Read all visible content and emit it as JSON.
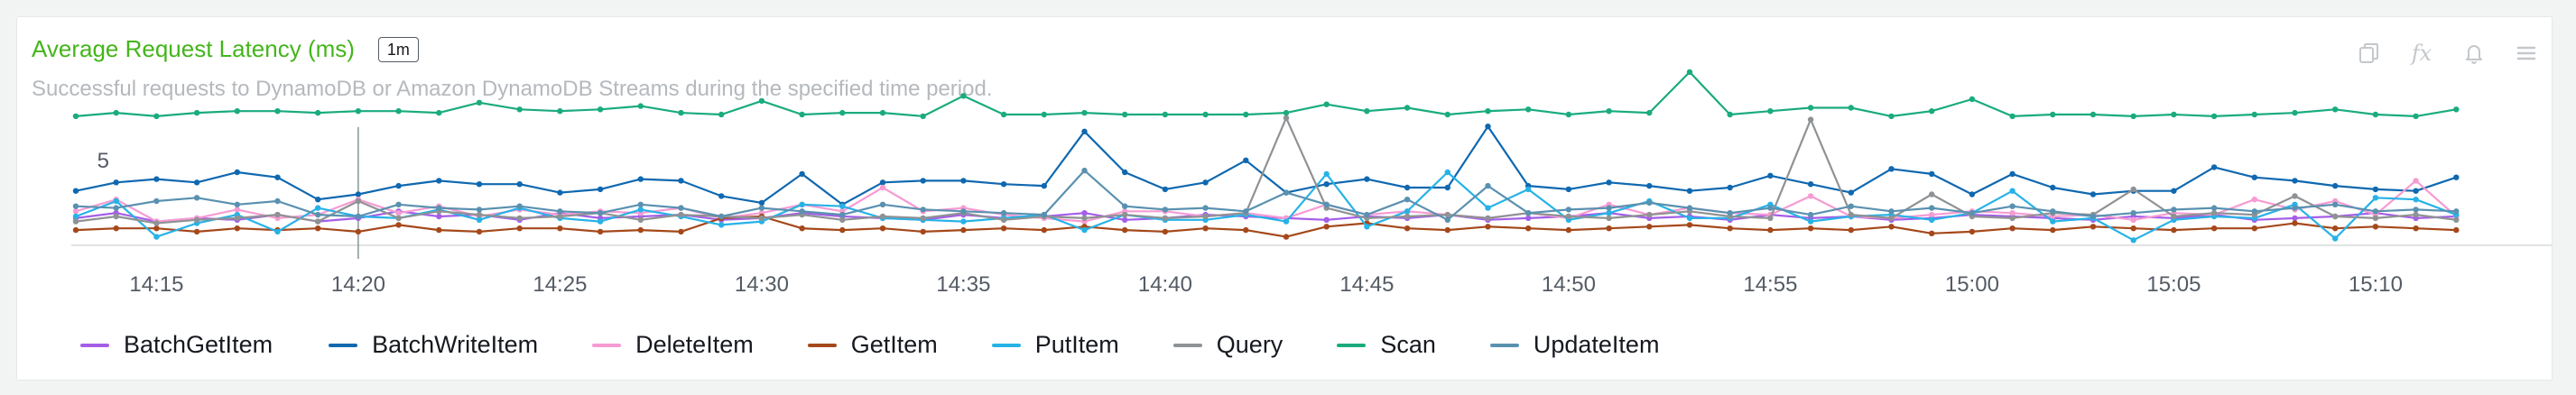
{
  "widget": {
    "title": "Average Request Latency (ms)",
    "period": "1m",
    "subtitle": "Successful requests to DynamoDB or Amazon DynamoDB Streams during the specified time period.",
    "icons": [
      "copy-icon",
      "fx-icon",
      "bell-icon",
      "menu-icon"
    ],
    "fx_label": "fx"
  },
  "chart_data": {
    "type": "line",
    "x": [
      "14:13",
      "14:14",
      "14:15",
      "14:16",
      "14:17",
      "14:18",
      "14:19",
      "14:20",
      "14:21",
      "14:22",
      "14:23",
      "14:24",
      "14:25",
      "14:26",
      "14:27",
      "14:28",
      "14:29",
      "14:30",
      "14:31",
      "14:32",
      "14:33",
      "14:34",
      "14:35",
      "14:36",
      "14:37",
      "14:38",
      "14:39",
      "14:40",
      "14:41",
      "14:42",
      "14:43",
      "14:44",
      "14:45",
      "14:46",
      "14:47",
      "14:48",
      "14:49",
      "14:50",
      "14:51",
      "14:52",
      "14:53",
      "14:54",
      "14:55",
      "14:56",
      "14:57",
      "14:58",
      "14:59",
      "15:00",
      "15:01",
      "15:02",
      "15:03",
      "15:04",
      "15:05",
      "15:06",
      "15:07",
      "15:08",
      "15:09",
      "15:10",
      "15:11",
      "15:12"
    ],
    "x_ticks": [
      "14:15",
      "14:20",
      "14:25",
      "14:30",
      "14:35",
      "14:40",
      "14:45",
      "14:50",
      "14:55",
      "15:00",
      "15:05",
      "15:10"
    ],
    "y_ticks": [
      "5"
    ],
    "ylim": [
      0,
      11
    ],
    "cursor_x": "14:20",
    "colors": {
      "BatchGetItem": "#a55ee8",
      "BatchWriteItem": "#0f68b0",
      "DeleteItem": "#f79bd3",
      "GetItem": "#a5481a",
      "PutItem": "#27b2e7",
      "Query": "#8f9294",
      "Scan": "#1aab7e",
      "UpdateItem": "#5a91b0"
    },
    "series": [
      {
        "name": "BatchGetItem",
        "values": [
          1.6,
          1.9,
          1.4,
          1.6,
          1.5,
          1.8,
          1.4,
          1.6,
          2.0,
          1.7,
          1.8,
          1.5,
          1.9,
          1.6,
          1.7,
          1.8,
          1.5,
          1.6,
          1.9,
          1.7,
          1.6,
          1.5,
          1.8,
          1.6,
          1.7,
          1.9,
          1.5,
          1.6,
          1.8,
          1.7,
          1.6,
          1.5,
          1.7,
          1.6,
          1.8,
          1.5,
          1.6,
          1.7,
          1.9,
          1.6,
          1.7,
          1.5,
          1.8,
          1.6,
          1.7,
          1.5,
          1.6,
          1.8,
          1.7,
          1.6,
          1.5,
          1.7,
          1.6,
          1.8,
          1.5,
          1.6,
          1.7,
          1.9,
          1.6,
          1.7
        ]
      },
      {
        "name": "BatchWriteItem",
        "values": [
          3.2,
          3.7,
          3.9,
          3.7,
          4.3,
          4.0,
          2.7,
          3.0,
          3.5,
          3.8,
          3.6,
          3.6,
          3.1,
          3.3,
          3.9,
          3.8,
          2.9,
          2.5,
          4.2,
          2.4,
          3.7,
          3.8,
          3.8,
          3.6,
          3.5,
          6.7,
          4.3,
          3.3,
          3.7,
          5.0,
          3.1,
          3.6,
          3.9,
          3.4,
          3.4,
          7.0,
          3.5,
          3.3,
          3.7,
          3.5,
          3.2,
          3.4,
          4.1,
          3.6,
          3.1,
          4.5,
          4.2,
          3.0,
          4.2,
          3.4,
          3.0,
          3.2,
          3.2,
          4.6,
          4.0,
          3.8,
          3.5,
          3.3,
          3.2,
          4.0
        ]
      },
      {
        "name": "DeleteItem",
        "values": [
          2.0,
          2.7,
          1.4,
          1.6,
          2.1,
          1.6,
          1.8,
          2.7,
          1.9,
          2.3,
          1.7,
          2.1,
          1.8,
          2.0,
          1.9,
          2.2,
          1.6,
          1.9,
          2.4,
          2.0,
          3.4,
          2.0,
          2.2,
          1.8,
          1.6,
          1.4,
          2.0,
          2.0,
          1.7,
          1.9,
          1.6,
          2.4,
          1.8,
          2.0,
          1.8,
          1.6,
          1.9,
          1.6,
          2.4,
          1.8,
          2.2,
          1.9,
          1.8,
          2.9,
          1.7,
          1.6,
          1.8,
          2.0,
          1.9,
          1.7,
          1.8,
          1.5,
          1.9,
          1.8,
          2.7,
          2.1,
          2.6,
          1.8,
          3.8,
          1.7
        ]
      },
      {
        "name": "GetItem",
        "values": [
          0.9,
          1.0,
          1.0,
          0.8,
          1.0,
          0.9,
          1.0,
          0.8,
          1.2,
          0.9,
          0.8,
          1.0,
          1.0,
          0.8,
          0.9,
          0.8,
          1.6,
          1.7,
          1.0,
          0.9,
          1.0,
          0.8,
          0.9,
          1.0,
          0.9,
          1.1,
          0.9,
          0.8,
          1.0,
          0.9,
          0.5,
          1.1,
          1.3,
          1.0,
          0.9,
          1.1,
          1.0,
          0.9,
          1.0,
          1.1,
          1.2,
          1.0,
          0.9,
          1.0,
          0.9,
          1.1,
          0.7,
          0.8,
          1.0,
          0.9,
          1.1,
          1.0,
          0.9,
          1.0,
          1.0,
          1.3,
          1.0,
          1.1,
          1.0,
          0.9
        ]
      },
      {
        "name": "PutItem",
        "values": [
          1.7,
          2.6,
          0.5,
          1.3,
          1.8,
          0.8,
          2.2,
          1.7,
          1.6,
          2.1,
          1.5,
          2.2,
          1.6,
          1.4,
          2.1,
          1.7,
          1.2,
          1.4,
          2.4,
          2.3,
          1.6,
          1.5,
          1.4,
          1.6,
          1.8,
          0.9,
          1.8,
          1.5,
          1.5,
          1.8,
          1.4,
          4.2,
          1.1,
          2.0,
          4.3,
          2.2,
          3.3,
          1.5,
          1.9,
          2.6,
          1.6,
          1.6,
          2.4,
          1.4,
          1.7,
          1.8,
          1.5,
          1.9,
          3.2,
          1.4,
          1.6,
          0.3,
          1.5,
          1.7,
          1.6,
          2.4,
          0.4,
          2.8,
          2.7,
          1.8
        ]
      },
      {
        "name": "Query",
        "values": [
          1.4,
          1.7,
          1.3,
          1.5,
          1.6,
          1.8,
          1.4,
          2.6,
          1.6,
          2.0,
          1.8,
          1.6,
          1.7,
          1.9,
          1.5,
          1.8,
          1.7,
          1.6,
          1.8,
          1.5,
          1.7,
          1.6,
          1.9,
          1.5,
          1.7,
          1.6,
          1.8,
          1.6,
          1.7,
          1.9,
          7.5,
          2.2,
          1.6,
          1.7,
          1.8,
          1.6,
          1.9,
          1.7,
          1.6,
          1.8,
          2.0,
          1.7,
          1.6,
          7.4,
          1.8,
          1.6,
          3.0,
          1.7,
          1.6,
          1.9,
          1.8,
          3.3,
          1.7,
          1.9,
          1.8,
          2.9,
          1.7,
          1.6,
          1.8,
          1.5
        ]
      },
      {
        "name": "Scan",
        "values": [
          7.6,
          7.8,
          7.6,
          7.8,
          7.9,
          7.9,
          7.8,
          7.9,
          7.9,
          7.8,
          8.4,
          8.0,
          7.9,
          8.0,
          8.2,
          7.8,
          7.7,
          8.5,
          7.7,
          7.8,
          7.8,
          7.6,
          8.8,
          7.7,
          7.7,
          7.8,
          7.7,
          7.7,
          7.7,
          7.7,
          7.8,
          8.3,
          7.9,
          8.1,
          7.7,
          7.9,
          8.0,
          7.7,
          7.9,
          7.8,
          10.2,
          7.7,
          7.9,
          8.1,
          8.1,
          7.6,
          7.9,
          8.6,
          7.6,
          7.7,
          7.7,
          7.6,
          7.7,
          7.6,
          7.7,
          7.8,
          8.0,
          7.7,
          7.6,
          8.0
        ]
      },
      {
        "name": "UpdateItem",
        "values": [
          2.3,
          2.2,
          2.6,
          2.8,
          2.4,
          2.6,
          1.8,
          1.7,
          2.4,
          2.2,
          2.1,
          2.3,
          2.0,
          1.9,
          2.4,
          2.2,
          1.7,
          2.2,
          2.0,
          1.8,
          2.4,
          2.1,
          2.0,
          1.9,
          1.8,
          4.4,
          2.3,
          2.1,
          2.2,
          2.0,
          3.1,
          2.4,
          1.8,
          2.7,
          1.5,
          3.5,
          1.9,
          2.1,
          2.2,
          2.5,
          2.2,
          1.9,
          2.2,
          1.8,
          2.3,
          2.0,
          2.2,
          1.9,
          2.3,
          2.0,
          1.7,
          1.9,
          2.1,
          2.2,
          2.0,
          2.2,
          2.4,
          2.0,
          2.1,
          2.0
        ]
      }
    ]
  }
}
